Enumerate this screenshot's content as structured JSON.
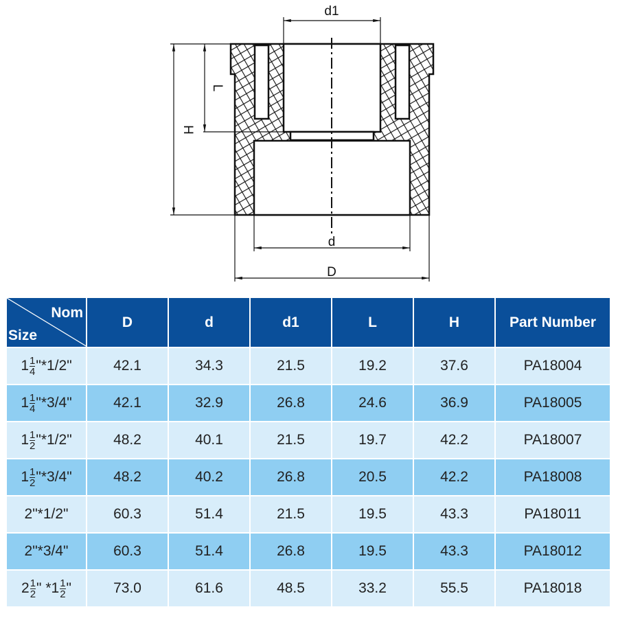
{
  "drawing": {
    "labels": {
      "d1": "d1",
      "L": "L",
      "H": "H",
      "d": "d",
      "D": "D"
    }
  },
  "table": {
    "corner": {
      "top": "Nom",
      "bottom": "Size"
    },
    "headers": [
      "D",
      "d",
      "d1",
      "L",
      "H",
      "Part Number"
    ],
    "colors": {
      "header": "#0a4f9a",
      "row_light": "#d8edfa",
      "row_dark": "#8fcef2"
    },
    "rows": [
      {
        "size": [
          {
            "w": "1",
            "n": "1",
            "d": "4"
          },
          {
            "t": "\"*1/2\""
          }
        ],
        "values": [
          "42.1",
          "34.3",
          "21.5",
          "19.2",
          "37.6",
          "PA18004"
        ]
      },
      {
        "size": [
          {
            "w": "1",
            "n": "1",
            "d": "4"
          },
          {
            "t": "\"*3/4\""
          }
        ],
        "values": [
          "42.1",
          "32.9",
          "26.8",
          "24.6",
          "36.9",
          "PA18005"
        ]
      },
      {
        "size": [
          {
            "w": "1",
            "n": "1",
            "d": "2"
          },
          {
            "t": "\"*1/2\""
          }
        ],
        "values": [
          "48.2",
          "40.1",
          "21.5",
          "19.7",
          "42.2",
          "PA18007"
        ]
      },
      {
        "size": [
          {
            "w": "1",
            "n": "1",
            "d": "2"
          },
          {
            "t": "\"*3/4\""
          }
        ],
        "values": [
          "48.2",
          "40.2",
          "26.8",
          "20.5",
          "42.2",
          "PA18008"
        ]
      },
      {
        "size": [
          {
            "t": "2\"*1/2\""
          }
        ],
        "values": [
          "60.3",
          "51.4",
          "21.5",
          "19.5",
          "43.3",
          "PA18011"
        ]
      },
      {
        "size": [
          {
            "t": "2\"*3/4\""
          }
        ],
        "values": [
          "60.3",
          "51.4",
          "26.8",
          "19.5",
          "43.3",
          "PA18012"
        ]
      },
      {
        "size": [
          {
            "w": "2",
            "n": "1",
            "d": "2"
          },
          {
            "t": "\" *"
          },
          {
            "w": "1",
            "n": "1",
            "d": "2"
          },
          {
            "t": "\""
          }
        ],
        "values": [
          "73.0",
          "61.6",
          "48.5",
          "33.2",
          "55.5",
          "PA18018"
        ]
      }
    ]
  }
}
